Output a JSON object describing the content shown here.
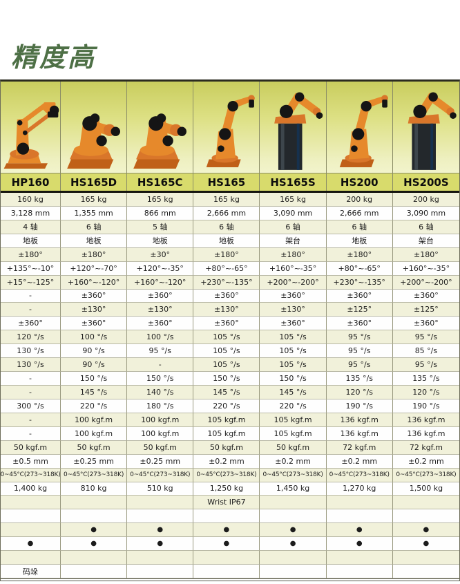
{
  "page": {
    "title": "精度高",
    "title_color": "#4e7046"
  },
  "colors": {
    "model_band": "#d8db6c",
    "row_pale": "#f1f1da",
    "row_white": "#fefefe",
    "robot_orange": "#e6892b",
    "robot_shade": "#d9762a",
    "robot_dark": "#c06018",
    "joint_black": "#151515",
    "pedestal_gray": "#23282c"
  },
  "table": {
    "models": [
      {
        "name": "HP160",
        "robot": "palletizer-robot"
      },
      {
        "name": "HS165D",
        "robot": "compact-robot"
      },
      {
        "name": "HS165C",
        "robot": "compact-robot"
      },
      {
        "name": "HS165",
        "robot": "upright-robot"
      },
      {
        "name": "HS165S",
        "robot": "shelf-robot"
      },
      {
        "name": "HS200",
        "robot": "upright-robot"
      },
      {
        "name": "HS200S",
        "robot": "shelf-robot"
      }
    ],
    "rows": [
      {
        "cells": [
          "160 kg",
          "165 kg",
          "165 kg",
          "165 kg",
          "165 kg",
          "200 kg",
          "200 kg"
        ]
      },
      {
        "cells": [
          "3,128 mm",
          "1,355 mm",
          "866 mm",
          "2,666 mm",
          "3,090 mm",
          "2,666 mm",
          "3,090 mm"
        ]
      },
      {
        "cells": [
          "4 轴",
          "6 轴",
          "5 轴",
          "6 轴",
          "6 轴",
          "6 轴",
          "6 轴"
        ]
      },
      {
        "cells": [
          "地板",
          "地板",
          "地板",
          "地板",
          "架台",
          "地板",
          "架台"
        ]
      },
      {
        "cells": [
          "±180°",
          "±180°",
          "±30°",
          "±180°",
          "±180°",
          "±180°",
          "±180°"
        ]
      },
      {
        "cells": [
          "+135°~-10°",
          "+120°~-70°",
          "+120°~-35°",
          "+80°~-65°",
          "+160°~-35°",
          "+80°~-65°",
          "+160°~-35°"
        ]
      },
      {
        "cells": [
          "+15°~-125°",
          "+160°~-120°",
          "+160°~-120°",
          "+230°~-135°",
          "+200°~-200°",
          "+230°~-135°",
          "+200°~-200°"
        ]
      },
      {
        "cells": [
          "-",
          "±360°",
          "±360°",
          "±360°",
          "±360°",
          "±360°",
          "±360°"
        ]
      },
      {
        "cells": [
          "-",
          "±130°",
          "±130°",
          "±130°",
          "±130°",
          "±125°",
          "±125°"
        ]
      },
      {
        "cells": [
          "±360°",
          "±360°",
          "±360°",
          "±360°",
          "±360°",
          "±360°",
          "±360°"
        ]
      },
      {
        "cells": [
          "120 °/s",
          "100 °/s",
          "100 °/s",
          "105 °/s",
          "105 °/s",
          "95 °/s",
          "95 °/s"
        ]
      },
      {
        "cells": [
          "130 °/s",
          "90 °/s",
          "95 °/s",
          "105 °/s",
          "105 °/s",
          "95 °/s",
          "85 °/s"
        ]
      },
      {
        "cells": [
          "130 °/s",
          "90 °/s",
          "-",
          "105 °/s",
          "105 °/s",
          "95 °/s",
          "95 °/s"
        ]
      },
      {
        "cells": [
          "-",
          "150 °/s",
          "150 °/s",
          "150 °/s",
          "150 °/s",
          "135 °/s",
          "135 °/s"
        ]
      },
      {
        "cells": [
          "-",
          "145 °/s",
          "140 °/s",
          "145 °/s",
          "145 °/s",
          "120 °/s",
          "120 °/s"
        ]
      },
      {
        "cells": [
          "300 °/s",
          "220 °/s",
          "180 °/s",
          "220 °/s",
          "220 °/s",
          "190 °/s",
          "190 °/s"
        ]
      },
      {
        "cells": [
          "-",
          "100 kgf.m",
          "100 kgf.m",
          "105 kgf.m",
          "105 kgf.m",
          "136 kgf.m",
          "136 kgf.m"
        ]
      },
      {
        "cells": [
          "-",
          "100 kgf.m",
          "100 kgf.m",
          "105 kgf.m",
          "105 kgf.m",
          "136 kgf.m",
          "136 kgf.m"
        ]
      },
      {
        "cells": [
          "50 kgf.m",
          "50 kgf.m",
          "50 kgf.m",
          "50 kgf.m",
          "50 kgf.m",
          "72 kgf.m",
          "72 kgf.m"
        ]
      },
      {
        "cells": [
          "±0.5 mm",
          "±0.25 mm",
          "±0.25 mm",
          "±0.2 mm",
          "±0.2 mm",
          "±0.2 mm",
          "±0.2 mm"
        ]
      },
      {
        "cells": [
          "0~45°C(273~318K)",
          "0~45°C(273~318K)",
          "0~45°C(273~318K)",
          "0~45°C(273~318K)",
          "0~45°C(273~318K)",
          "0~45°C(273~318K)",
          "0~45°C(273~318K)"
        ]
      },
      {
        "cells": [
          "1,400 kg",
          "810 kg",
          "510 kg",
          "1,250 kg",
          "1,450 kg",
          "1,270 kg",
          "1,500 kg"
        ]
      },
      {
        "cells": [
          "",
          "",
          "",
          "Wrist IP67",
          "",
          "",
          ""
        ]
      },
      {
        "cells": [
          "",
          "",
          "",
          "",
          "",
          "",
          ""
        ]
      },
      {
        "cells": [
          "",
          "●",
          "●",
          "●",
          "●",
          "●",
          "●"
        ]
      },
      {
        "cells": [
          "●",
          "●",
          "●",
          "●",
          "●",
          "●",
          "●"
        ]
      },
      {
        "cells": [
          "",
          "",
          "",
          "",
          "",
          "",
          ""
        ]
      },
      {
        "cells": [
          "码垛",
          "",
          "",
          "",
          "",
          "",
          ""
        ]
      }
    ]
  }
}
